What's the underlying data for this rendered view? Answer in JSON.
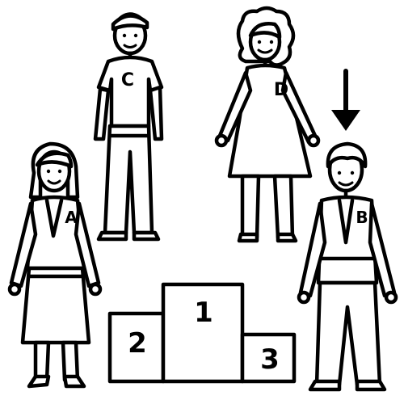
{
  "people": {
    "a": {
      "label": "A"
    },
    "b": {
      "label": "B"
    },
    "c": {
      "label": "C"
    },
    "d": {
      "label": "D"
    }
  },
  "podium": {
    "first": "1",
    "second": "2",
    "third": "3"
  },
  "icons": {
    "pointer": "arrow-down-icon"
  }
}
